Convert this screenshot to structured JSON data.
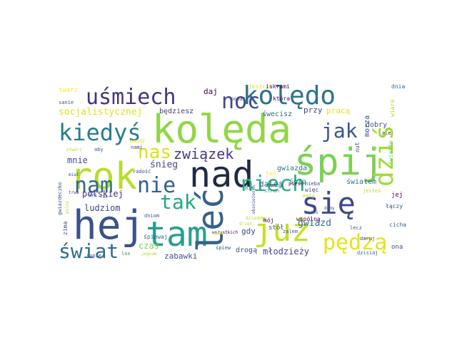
{
  "palette": {
    "dark_purple": "#440154",
    "indigo": "#3b528b",
    "blue": "#31688e",
    "teal": "#21918c",
    "green": "#35b779",
    "lime": "#8fd744",
    "yellow": "#cde11d"
  },
  "words": [
    {
      "text": "kolęda",
      "color": "#8fd744"
    },
    {
      "text": "kolędo",
      "color": "#2c728e"
    },
    {
      "text": "rok",
      "color": "#b5de2b"
    },
    {
      "text": "nad",
      "color": "#1f2a44"
    },
    {
      "text": "śpij",
      "color": "#7ad151"
    },
    {
      "text": "hej",
      "color": "#3b528b"
    },
    {
      "text": "tam",
      "color": "#2a9d8f"
    },
    {
      "text": "już",
      "color": "#c6e021"
    },
    {
      "text": "leć",
      "color": "#34618d"
    },
    {
      "text": "się",
      "color": "#3e4989"
    },
    {
      "text": "uśmiech",
      "color": "#46337e"
    },
    {
      "text": "noc",
      "color": "#3e4a89"
    },
    {
      "text": "kiedyś",
      "color": "#287d8e"
    },
    {
      "text": "dziś",
      "color": "#a0da39"
    },
    {
      "text": "nam",
      "color": "#31688e"
    },
    {
      "text": "nie",
      "color": "#355f8d"
    },
    {
      "text": "tak",
      "color": "#22a884"
    },
    {
      "text": "niech",
      "color": "#29af7f"
    },
    {
      "text": "jak",
      "color": "#39568c"
    },
    {
      "text": "nas",
      "color": "#d8e219"
    },
    {
      "text": "związek",
      "color": "#443a83"
    },
    {
      "text": "świat",
      "color": "#2f6c8e"
    },
    {
      "text": "pędzą",
      "color": "#e5e419"
    },
    {
      "text": "socjalistycznej",
      "color": "#e0e21b"
    },
    {
      "text": "polskiej",
      "color": "#46337e"
    },
    {
      "text": "śnieg",
      "color": "#3d4d8a"
    },
    {
      "text": "gwiazd",
      "color": "#2d708e"
    },
    {
      "text": "młodzieży",
      "color": "#3f4788"
    },
    {
      "text": "mnie",
      "color": "#3b528b"
    },
    {
      "text": "ludziom",
      "color": "#3f4788"
    },
    {
      "text": "czas",
      "color": "#7ad151"
    },
    {
      "text": "zabawki",
      "color": "#3b528b"
    },
    {
      "text": "gdy",
      "color": "#3e4989"
    },
    {
      "text": "dalej",
      "color": "#31688e"
    },
    {
      "text": "śpią",
      "color": "#21918c"
    },
    {
      "text": "światem",
      "color": "#2c728e"
    },
    {
      "text": "dobry",
      "color": "#3b528b"
    },
    {
      "text": "gwiazda",
      "color": "#2a788e"
    },
    {
      "text": "światło",
      "color": "#6ccd5a"
    },
    {
      "text": "daj",
      "color": "#440154"
    },
    {
      "text": "będziesz",
      "color": "#443a83"
    },
    {
      "text": "przy",
      "color": "#3e4a89"
    },
    {
      "text": "pracą",
      "color": "#e5e419"
    },
    {
      "text": "twarz",
      "color": "#fde725"
    },
    {
      "text": "jeszcze",
      "color": "#e0e21b"
    },
    {
      "text": "iskrami",
      "color": "#440154"
    },
    {
      "text": "dnia",
      "color": "#31688e"
    },
    {
      "text": "popatrz",
      "color": "#3e4a89"
    },
    {
      "text": "która",
      "color": "#440154"
    },
    {
      "text": "śwecisz",
      "color": "#31688e"
    },
    {
      "text": "sanie",
      "color": "#3b528b"
    },
    {
      "text": "morza",
      "color": "#3e4a89"
    },
    {
      "text": "nut",
      "color": "#3b528b"
    },
    {
      "text": "wiara",
      "color": "#b5de2b"
    },
    {
      "text": "ale",
      "color": "#440154"
    },
    {
      "text": "otwórz",
      "color": "#b5de2b"
    },
    {
      "text": "aby",
      "color": "#3b528b"
    },
    {
      "text": "obudź",
      "color": "#e5e419"
    },
    {
      "text": "nami",
      "color": "#3e4a89"
    },
    {
      "text": "radość",
      "color": "#3b528b"
    },
    {
      "text": "ten",
      "color": "#fde725"
    },
    {
      "text": "nieba",
      "color": "#3e4a89"
    },
    {
      "text": "jej",
      "color": "#440154"
    },
    {
      "text": "więc",
      "color": "#3e4989"
    },
    {
      "text": "mały",
      "color": "#b5de2b"
    },
    {
      "text": "rzucii",
      "color": "#3b528b"
    },
    {
      "text": "pieśń",
      "color": "#440154"
    },
    {
      "text": "bis",
      "color": "#31688e"
    },
    {
      "text": "stron",
      "color": "#21918c"
    },
    {
      "text": "jesteś",
      "color": "#b5de2b"
    },
    {
      "text": "łączy",
      "color": "#3b528b"
    },
    {
      "text": "dniom",
      "color": "#3b528b"
    },
    {
      "text": "wspólną",
      "color": "#440154"
    },
    {
      "text": "śpiewaj",
      "color": "#31688e"
    },
    {
      "text": "stół",
      "color": "#3b528b"
    },
    {
      "text": "zalem",
      "color": "#3b528b"
    },
    {
      "text": "cicha",
      "color": "#31688e"
    },
    {
      "text": "lecz",
      "color": "#3b528b"
    },
    {
      "text": "daruj",
      "color": "#3b528b"
    },
    {
      "text": "dzisiaj",
      "color": "#31688e"
    },
    {
      "text": "śpiew",
      "color": "#3b528b"
    },
    {
      "text": "zegnam",
      "color": "#b5de2b"
    },
    {
      "text": "los",
      "color": "#21918c"
    },
    {
      "text": "sypie",
      "color": "#3b528b"
    },
    {
      "text": "drogą",
      "color": "#3b528b"
    },
    {
      "text": "ona",
      "color": "#3b528b"
    },
    {
      "text": "wszystkich",
      "color": "#440154"
    },
    {
      "text": "mój",
      "color": "#440154"
    },
    {
      "text": "dziadek",
      "color": "#b5de2b"
    },
    {
      "text": "gwiazdeczko",
      "color": "#3b528b"
    },
    {
      "text": "zima",
      "color": "#3b528b"
    },
    {
      "text": "trwa",
      "color": "#3b528b"
    },
    {
      "text": "syp",
      "color": "#3b528b"
    },
    {
      "text": "nieś",
      "color": "#3b528b"
    },
    {
      "text": "domy",
      "color": "#3b528b"
    },
    {
      "text": "drzeń",
      "color": "#b5de2b"
    },
    {
      "text": "obsnieżonym",
      "color": "#3b528b"
    },
    {
      "text": "miał",
      "color": "#3b528b"
    },
    {
      "text": "polne",
      "color": "#b5de2b"
    },
    {
      "text": "rak",
      "color": "#3b528b"
    },
    {
      "text": "modo",
      "color": "#e5e419"
    }
  ]
}
